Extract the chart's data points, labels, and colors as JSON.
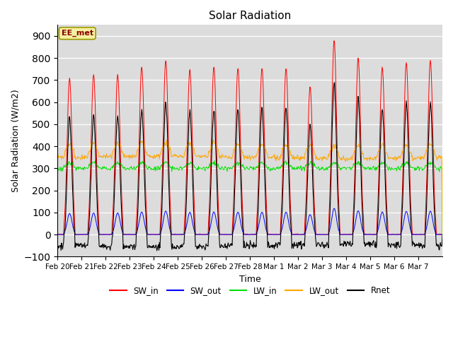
{
  "title": "Solar Radiation",
  "xlabel": "Time",
  "ylabel": "Solar Radiation (W/m2)",
  "annotation": "EE_met",
  "ylim": [
    -100,
    950
  ],
  "yticks": [
    -100,
    0,
    100,
    200,
    300,
    400,
    500,
    600,
    700,
    800,
    900
  ],
  "x_labels": [
    "Feb 20",
    "Feb 21",
    "Feb 22",
    "Feb 23",
    "Feb 24",
    "Feb 25",
    "Feb 26",
    "Feb 27",
    "Feb 28",
    "Mar 1",
    "Mar 2",
    "Mar 3",
    "Mar 4",
    "Mar 5",
    "Mar 6",
    "Mar 7"
  ],
  "colors": {
    "SW_in": "#ff0000",
    "SW_out": "#0000ff",
    "LW_in": "#00dd00",
    "LW_out": "#ffa500",
    "Rnet": "#000000"
  },
  "plot_bg": "#dcdcdc",
  "fig_bg": "#ffffff",
  "n_days": 16,
  "sw_in_peaks": [
    710,
    725,
    725,
    760,
    790,
    750,
    760,
    755,
    755,
    755,
    670,
    880,
    800,
    760,
    780,
    790
  ],
  "lw_in_base": 300,
  "lw_out_base": 350
}
